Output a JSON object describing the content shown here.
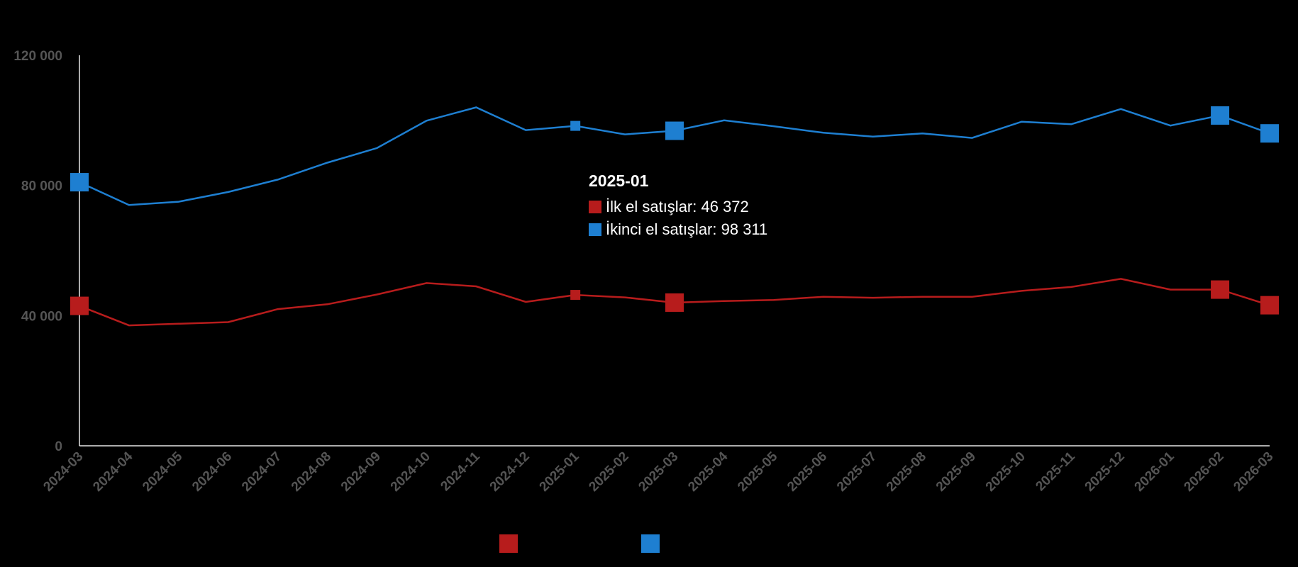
{
  "chart_data": {
    "type": "line",
    "title": "",
    "xlabel": "",
    "ylabel": "",
    "ylim": [
      0,
      120000
    ],
    "yticks": [
      0,
      40000,
      80000,
      120000
    ],
    "ytick_labels": [
      "0",
      "40 000",
      "80 000",
      "120 000"
    ],
    "x": [
      "2024-03",
      "2024-04",
      "2024-05",
      "2024-06",
      "2024-07",
      "2024-08",
      "2024-09",
      "2024-10",
      "2024-11",
      "2024-12",
      "2025-01",
      "2025-02",
      "2025-03",
      "2025-04",
      "2025-05",
      "2025-06",
      "2025-07",
      "2025-08",
      "2025-09",
      "2025-10",
      "2025-11",
      "2025-12",
      "2026-01",
      "2026-02",
      "2026-03"
    ],
    "series": [
      {
        "name": "İlk el satışlar",
        "color": "#b71c1c",
        "values": [
          43000,
          37000,
          37500,
          38000,
          42000,
          43500,
          46500,
          50000,
          49000,
          44200,
          46372,
          45600,
          44000,
          44500,
          44800,
          45800,
          45500,
          45800,
          45800,
          47600,
          48800,
          51300,
          48000,
          48000,
          43200
        ],
        "markers": [
          0,
          12,
          23,
          24
        ]
      },
      {
        "name": "İkinci el satışlar",
        "color": "#1e7fd1",
        "values": [
          81000,
          74000,
          75000,
          78000,
          81800,
          87000,
          91500,
          99900,
          104000,
          97000,
          98311,
          95700,
          96800,
          100000,
          98200,
          96200,
          95000,
          96000,
          94600,
          99600,
          98800,
          103500,
          98400,
          101500,
          96000
        ],
        "markers": [
          0,
          12,
          23,
          24
        ]
      }
    ],
    "grid": false,
    "legend": "bottom-center",
    "tooltip": {
      "title": "2025-01",
      "rows": [
        "İlk el satışlar: 46 372",
        "İkinci el satışlar: 98 311"
      ]
    }
  }
}
